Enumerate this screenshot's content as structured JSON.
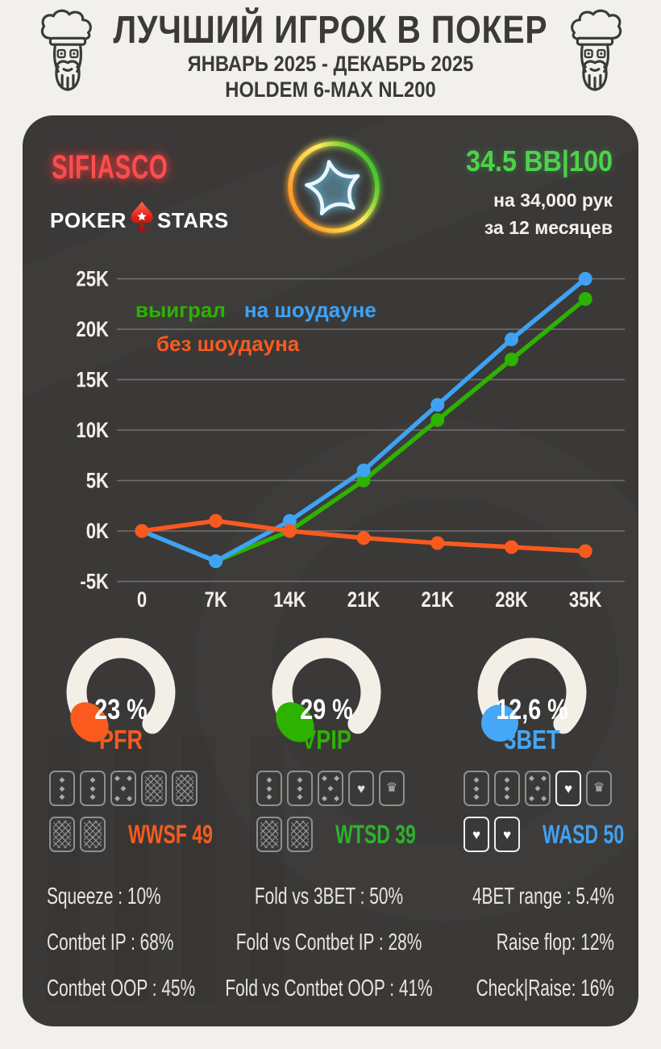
{
  "header": {
    "title": "ЛУЧШИЙ ИГРОК В ПОКЕР",
    "period": "ЯНВАРЬ 2025 - ДЕКАБРЬ 2025",
    "game": "HOLDEM 6-MAX NL200"
  },
  "profile": {
    "nickname": "SIFIASCO",
    "nickname_color": "#ff4c4c",
    "room_word1": "POKER",
    "room_word2": "STARS",
    "winrate": "34.5 BB|100",
    "winrate_color": "#4cd34c",
    "hands": "на 34,000 рук",
    "duration": "за  12 месяцев"
  },
  "chart_data": {
    "type": "line",
    "x_labels": [
      "0",
      "7K",
      "14K",
      "21K",
      "21K",
      "28K",
      "35K"
    ],
    "y_ticks": [
      "25K",
      "20K",
      "15K",
      "10K",
      "5K",
      "0K",
      "-5K"
    ],
    "ylim_k": [
      -5,
      25
    ],
    "grid": true,
    "legend_position": "inside-top-left",
    "series": [
      {
        "name": "выиграл",
        "color": "#2db200",
        "values_k": [
          0,
          -3,
          0,
          5,
          11,
          17,
          23
        ]
      },
      {
        "name": "на шоудауне",
        "color": "#3fa2f5",
        "values_k": [
          0,
          -3,
          1,
          6,
          12.5,
          19,
          25
        ]
      },
      {
        "name": "без шоудауна",
        "color": "#fa5a1e",
        "values_k": [
          0,
          1,
          0,
          -0.7,
          -1.2,
          -1.6,
          -2
        ]
      }
    ]
  },
  "gauges": [
    {
      "label": "PFR",
      "value": "23 %",
      "color": "#fa5a1e"
    },
    {
      "label": "VPIP",
      "value": "29 %",
      "color": "#2db200"
    },
    {
      "label": "3BET",
      "value": "12,6 %",
      "color": "#45a7f5"
    }
  ],
  "icons": {
    "pip": "◆",
    "heart": "♥",
    "crown": "♛"
  },
  "card_stats": [
    {
      "label": "WWSF 49",
      "color": "#fa5a1e",
      "row1": [
        "p3",
        "p3",
        "p5",
        "back",
        "back"
      ],
      "row2": [
        "back",
        "back"
      ]
    },
    {
      "label": "WTSD 39",
      "color": "#2db22d",
      "row1": [
        "p3",
        "p3",
        "p5",
        "heart",
        "crown"
      ],
      "row2": [
        "back",
        "back"
      ]
    },
    {
      "label": "WASD 50",
      "color": "#42a0f0",
      "row1": [
        "p3",
        "p3",
        "p5",
        "heartB",
        "crown"
      ],
      "row2": [
        "heartB",
        "heartB"
      ]
    }
  ],
  "bottom_stats": {
    "left": [
      "Squeeze : 10%",
      "Contbet IP : 68%",
      "Contbet OOP : 45%"
    ],
    "middle": [
      "Fold vs 3BET : 50%",
      "Fold vs Contbet IP : 28%",
      "Fold vs Contbet OOP : 41%"
    ],
    "right": [
      "4BET range : 5.4%",
      "Raise flop: 12%",
      "Check|Raise: 16%"
    ]
  }
}
